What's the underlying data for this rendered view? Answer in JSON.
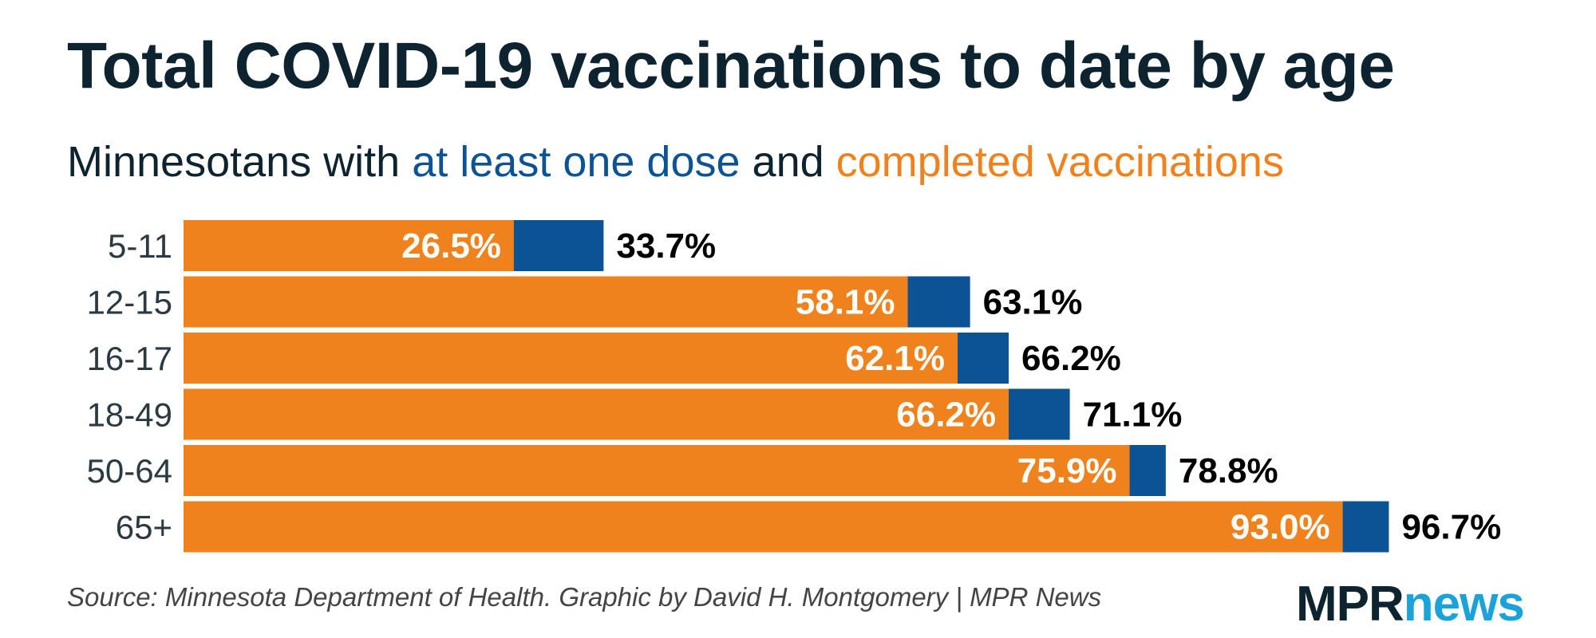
{
  "title": "Total COVID-19 vaccinations to date by age",
  "subtitle": {
    "part1": "Minnesotans with ",
    "part2": "at least one dose",
    "part3": " and ",
    "part4": "completed vaccinations"
  },
  "source": "Source: Minnesota Department of Health. Graphic by David H. Montgomery | MPR News",
  "logo": {
    "mpr": "MPR",
    "news": "news"
  },
  "colors": {
    "completed": "#f0821e",
    "at_least_one_dose": "#0b5394",
    "title": "#0d2430",
    "logo_news": "#1aa3d9"
  },
  "chart_data": {
    "type": "bar",
    "orientation": "horizontal",
    "categories": [
      "5-11",
      "12-15",
      "16-17",
      "18-49",
      "50-64",
      "65+"
    ],
    "series": [
      {
        "name": "completed vaccinations",
        "values": [
          26.5,
          58.1,
          62.1,
          66.2,
          75.9,
          93.0
        ],
        "labels": [
          "26.5%",
          "58.1%",
          "62.1%",
          "66.2%",
          "75.9%",
          "93.0%"
        ]
      },
      {
        "name": "at least one dose",
        "values": [
          33.7,
          63.1,
          66.2,
          71.1,
          78.8,
          96.7
        ],
        "labels": [
          "33.7%",
          "63.1%",
          "66.2%",
          "71.1%",
          "78.8%",
          "96.7%"
        ]
      }
    ],
    "xlim": [
      0,
      100
    ],
    "grid": false,
    "legend": "subtitle"
  }
}
